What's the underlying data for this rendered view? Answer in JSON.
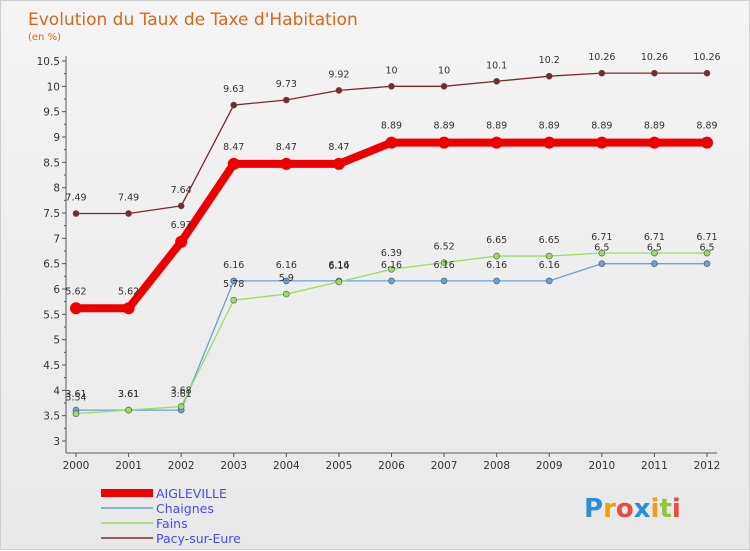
{
  "chart_data": {
    "type": "line",
    "title": "Evolution du Taux de Taxe d'Habitation",
    "ylabel": "(en %)",
    "xlabel": "",
    "categories": [
      "2000",
      "2001",
      "2002",
      "2003",
      "2004",
      "2005",
      "2006",
      "2007",
      "2008",
      "2009",
      "2010",
      "2011",
      "2012"
    ],
    "ylim": [
      3,
      10.5
    ],
    "yticks": [
      "3",
      "3.5",
      "4",
      "4.5",
      "5",
      "5.5",
      "6",
      "6.5",
      "7",
      "7.5",
      "8",
      "8.5",
      "9",
      "9.5",
      "10",
      "10.5"
    ],
    "grid": false,
    "legend_position": "bottom-left",
    "series": [
      {
        "name": "AIGLEVILLE",
        "color": "#ee0000",
        "values": [
          5.62,
          5.62,
          6.93,
          8.47,
          8.47,
          8.47,
          8.89,
          8.89,
          8.89,
          8.89,
          8.89,
          8.89,
          8.89
        ]
      },
      {
        "name": "Chaignes",
        "color": "#6aa0d8",
        "values": [
          3.61,
          3.61,
          3.61,
          6.16,
          6.16,
          6.16,
          6.16,
          6.16,
          6.16,
          6.16,
          6.5,
          6.5,
          6.5
        ]
      },
      {
        "name": "Fains",
        "color": "#99dd66",
        "values": [
          3.54,
          3.61,
          3.68,
          5.78,
          5.9,
          6.14,
          6.39,
          6.52,
          6.65,
          6.65,
          6.71,
          6.71,
          6.71
        ]
      },
      {
        "name": "Pacy-sur-Eure",
        "color": "#7a2a2a",
        "values": [
          7.49,
          7.49,
          7.64,
          9.63,
          9.73,
          9.92,
          10,
          10,
          10.1,
          10.2,
          10.26,
          10.26,
          10.26
        ]
      }
    ],
    "point_labels": [
      [
        "5.62",
        "5.62",
        "6.93",
        "8.47",
        "8.47",
        "8.47",
        "8.89",
        "8.89",
        "8.89",
        "8.89",
        "8.89",
        "8.89",
        "8.89"
      ],
      [
        "3.61",
        "3.61",
        "3.61",
        "6.16",
        "6.16",
        "6.16",
        "6.16",
        "6.16",
        "6.16",
        "6.16",
        "6.5",
        "6.5",
        "6.5"
      ],
      [
        "3.54",
        "3.61",
        "3.68",
        "5.78",
        "5.9",
        "6.14",
        "6.39",
        "6.52",
        "6.65",
        "6.65",
        "6.71",
        "6.71",
        "6.71"
      ],
      [
        "7.49",
        "7.49",
        "7.64",
        "9.63",
        "9.73",
        "9.92",
        "10",
        "10",
        "10.1",
        "10.2",
        "10.26",
        "10.26",
        "10.26"
      ]
    ]
  },
  "logo": {
    "letters": [
      "P",
      "r",
      "o",
      "x",
      "i",
      "t",
      "i"
    ],
    "colors": [
      "#2a8fd6",
      "#f39c12",
      "#e74c3c",
      "#2a8fd6",
      "#f39c12",
      "#8cc63f",
      "#e74c3c"
    ]
  }
}
